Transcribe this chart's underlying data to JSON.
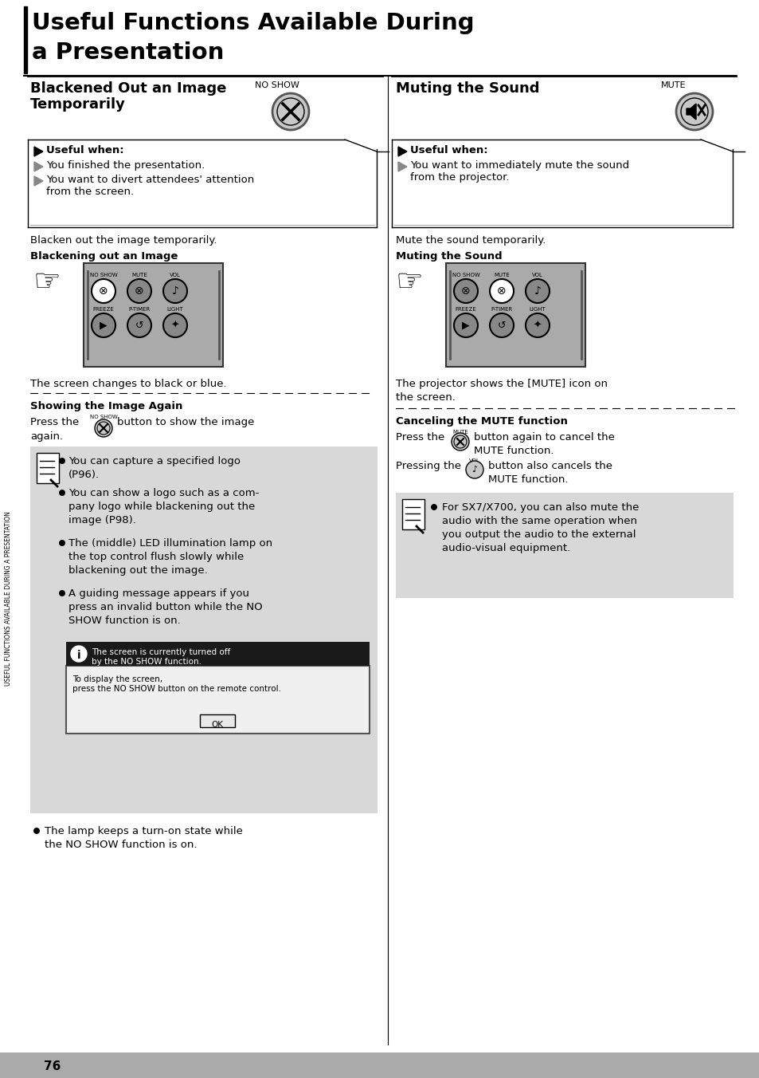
{
  "title_line1": "Useful Functions Available During",
  "title_line2": "a Presentation",
  "page_number": "76",
  "sidebar_text": "USEFUL FUNCTIONS AVAILABLE DURING A PRESENTATION",
  "bg_color": "#ffffff",
  "text_color": "#000000",
  "gray_bg": "#d8d8d8",
  "note_bg": "#d8d8d8",
  "dialog_dark": "#1a1a1a",
  "dialog_light": "#e8e8e8"
}
